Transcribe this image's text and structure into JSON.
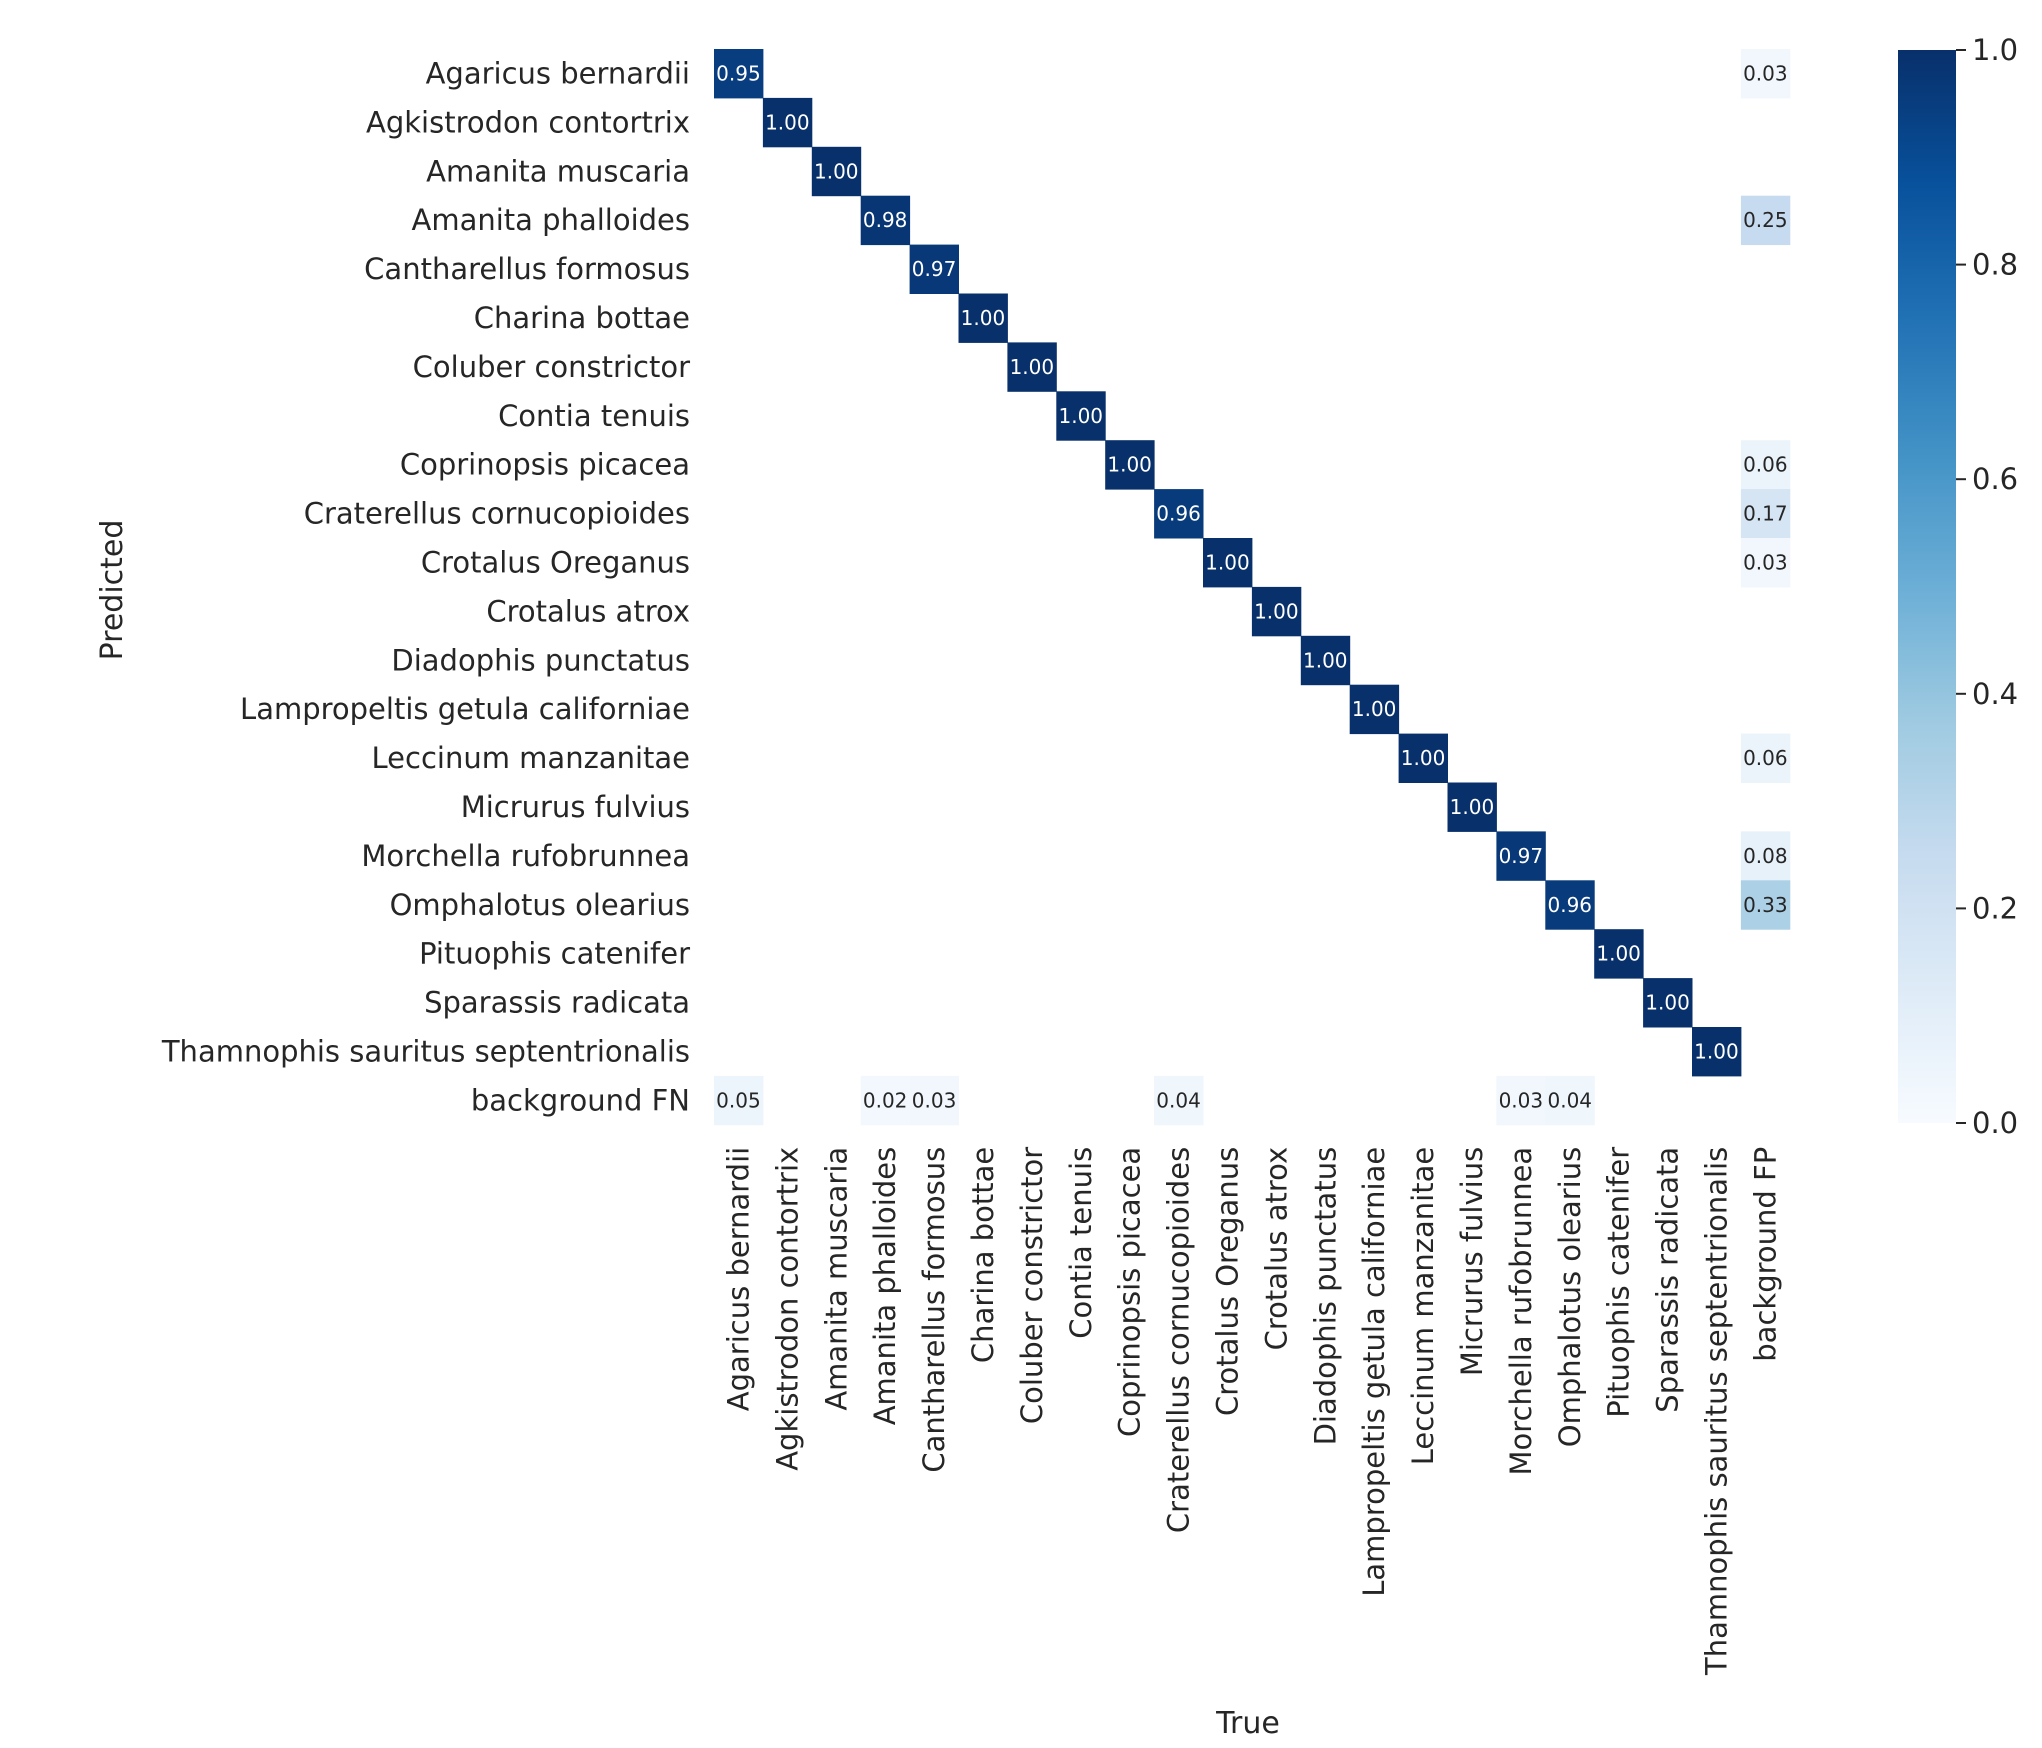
{
  "chart_data": {
    "type": "heatmap",
    "title": "",
    "xlabel": "True",
    "ylabel": "Predicted",
    "row_labels": [
      "Agaricus bernardii",
      "Agkistrodon contortrix",
      "Amanita muscaria",
      "Amanita phalloides",
      "Cantharellus formosus",
      "Charina bottae",
      "Coluber constrictor",
      "Contia tenuis",
      "Coprinopsis picacea",
      "Craterellus cornucopioides",
      "Crotalus Oreganus",
      "Crotalus atrox",
      "Diadophis punctatus",
      "Lampropeltis getula californiae",
      "Leccinum manzanitae",
      "Micrurus fulvius",
      "Morchella rufobrunnea",
      "Omphalotus olearius",
      "Pituophis catenifer",
      "Sparassis radicata",
      "Thamnophis sauritus septentrionalis",
      "background FN"
    ],
    "column_labels": [
      "Agaricus bernardii",
      "Agkistrodon contortrix",
      "Amanita muscaria",
      "Amanita phalloides",
      "Cantharellus formosus",
      "Charina bottae",
      "Coluber constrictor",
      "Contia tenuis",
      "Coprinopsis picacea",
      "Craterellus cornucopioides",
      "Crotalus Oreganus",
      "Crotalus atrox",
      "Diadophis punctatus",
      "Lampropeltis getula californiae",
      "Leccinum manzanitae",
      "Micrurus fulvius",
      "Morchella rufobrunnea",
      "Omphalotus olearius",
      "Pituophis catenifer",
      "Sparassis radicata",
      "Thamnophis sauritus septentrionalis",
      "background FP"
    ],
    "cells": [
      {
        "row": 0,
        "col": 0,
        "value": 0.95,
        "label": "0.95"
      },
      {
        "row": 0,
        "col": 21,
        "value": 0.03,
        "label": "0.03"
      },
      {
        "row": 1,
        "col": 1,
        "value": 1.0,
        "label": "1.00"
      },
      {
        "row": 2,
        "col": 2,
        "value": 1.0,
        "label": "1.00"
      },
      {
        "row": 3,
        "col": 3,
        "value": 0.98,
        "label": "0.98"
      },
      {
        "row": 3,
        "col": 21,
        "value": 0.25,
        "label": "0.25"
      },
      {
        "row": 4,
        "col": 4,
        "value": 0.97,
        "label": "0.97"
      },
      {
        "row": 5,
        "col": 5,
        "value": 1.0,
        "label": "1.00"
      },
      {
        "row": 6,
        "col": 6,
        "value": 1.0,
        "label": "1.00"
      },
      {
        "row": 7,
        "col": 7,
        "value": 1.0,
        "label": "1.00"
      },
      {
        "row": 8,
        "col": 8,
        "value": 1.0,
        "label": "1.00"
      },
      {
        "row": 8,
        "col": 21,
        "value": 0.06,
        "label": "0.06"
      },
      {
        "row": 9,
        "col": 9,
        "value": 0.96,
        "label": "0.96"
      },
      {
        "row": 9,
        "col": 21,
        "value": 0.17,
        "label": "0.17"
      },
      {
        "row": 10,
        "col": 10,
        "value": 1.0,
        "label": "1.00"
      },
      {
        "row": 10,
        "col": 21,
        "value": 0.03,
        "label": "0.03"
      },
      {
        "row": 11,
        "col": 11,
        "value": 1.0,
        "label": "1.00"
      },
      {
        "row": 12,
        "col": 12,
        "value": 1.0,
        "label": "1.00"
      },
      {
        "row": 13,
        "col": 13,
        "value": 1.0,
        "label": "1.00"
      },
      {
        "row": 14,
        "col": 14,
        "value": 1.0,
        "label": "1.00"
      },
      {
        "row": 14,
        "col": 21,
        "value": 0.06,
        "label": "0.06"
      },
      {
        "row": 15,
        "col": 15,
        "value": 1.0,
        "label": "1.00"
      },
      {
        "row": 16,
        "col": 16,
        "value": 0.97,
        "label": "0.97"
      },
      {
        "row": 16,
        "col": 21,
        "value": 0.08,
        "label": "0.08"
      },
      {
        "row": 17,
        "col": 17,
        "value": 0.96,
        "label": "0.96"
      },
      {
        "row": 17,
        "col": 21,
        "value": 0.33,
        "label": "0.33"
      },
      {
        "row": 18,
        "col": 18,
        "value": 1.0,
        "label": "1.00"
      },
      {
        "row": 19,
        "col": 19,
        "value": 1.0,
        "label": "1.00"
      },
      {
        "row": 20,
        "col": 20,
        "value": 1.0,
        "label": "1.00"
      },
      {
        "row": 21,
        "col": 0,
        "value": 0.05,
        "label": "0.05"
      },
      {
        "row": 21,
        "col": 3,
        "value": 0.02,
        "label": "0.02"
      },
      {
        "row": 21,
        "col": 4,
        "value": 0.03,
        "label": "0.03"
      },
      {
        "row": 21,
        "col": 9,
        "value": 0.04,
        "label": "0.04"
      },
      {
        "row": 21,
        "col": 16,
        "value": 0.03,
        "label": "0.03"
      },
      {
        "row": 21,
        "col": 17,
        "value": 0.04,
        "label": "0.04"
      }
    ],
    "colorbar": {
      "range": [
        0.0,
        1.0
      ],
      "ticks": [
        0.0,
        0.2,
        0.4,
        0.6,
        0.8,
        1.0
      ],
      "tick_labels": [
        "0.0",
        "0.2",
        "0.4",
        "0.6",
        "0.8",
        "1.0"
      ],
      "colormap": "Blues"
    },
    "grid": false,
    "legend": "colorbar-right"
  }
}
